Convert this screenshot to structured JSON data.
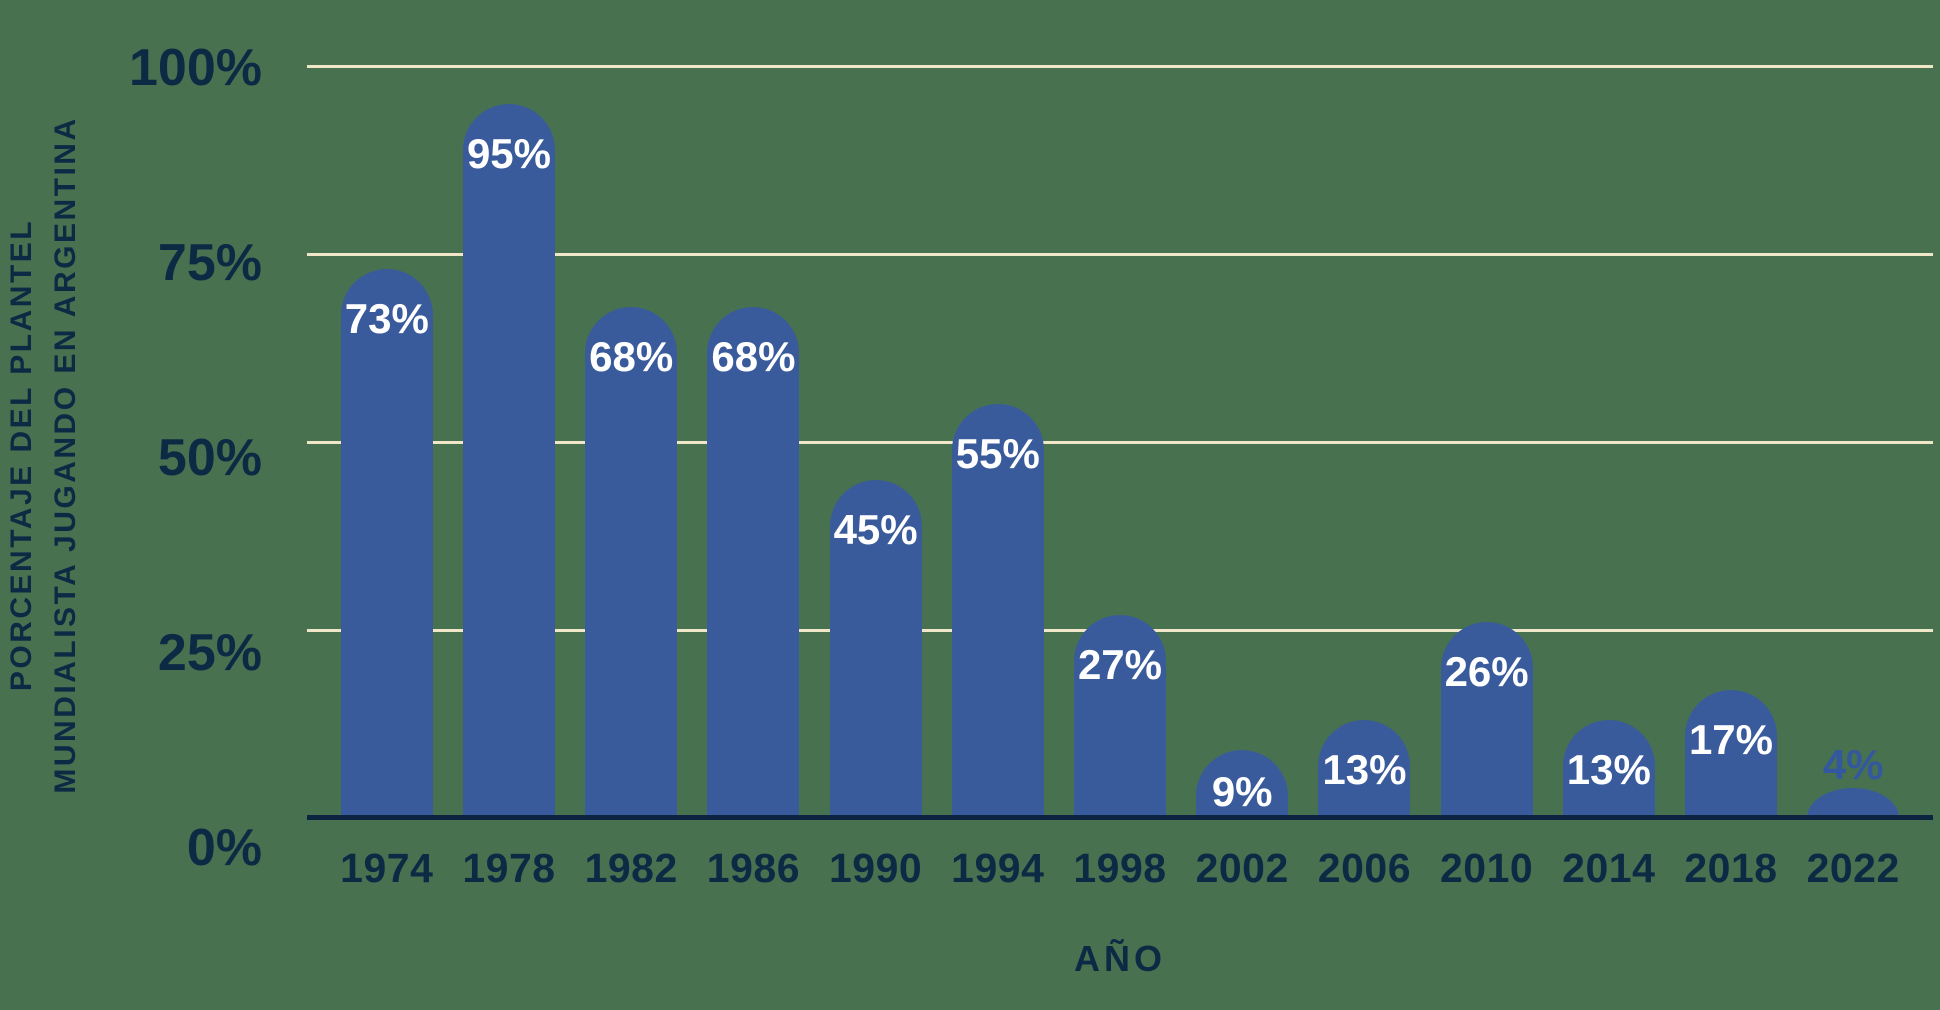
{
  "chart_data": {
    "type": "bar",
    "title": "",
    "xlabel": "AÑO",
    "ylabel_line1": "PORCENTAJE DEL PLANTEL",
    "ylabel_line2": "MUNDIALISTA JUGANDO EN ARGENTINA",
    "categories": [
      "1974",
      "1978",
      "1982",
      "1986",
      "1990",
      "1994",
      "1998",
      "2002",
      "2006",
      "2010",
      "2014",
      "2018",
      "2022"
    ],
    "values": [
      73,
      95,
      68,
      68,
      45,
      55,
      27,
      9,
      13,
      26,
      13,
      17,
      4
    ],
    "bar_labels": [
      "73%",
      "95%",
      "68%",
      "68%",
      "45%",
      "55%",
      "27%",
      "9%",
      "13%",
      "26%",
      "13%",
      "17%",
      "4%"
    ],
    "y_ticks": [
      "100%",
      "75%",
      "50%",
      "25%",
      "0%"
    ],
    "y_tick_values": [
      100,
      75,
      50,
      25,
      0
    ],
    "ylim": [
      0,
      100
    ],
    "grid": "horizontal",
    "legend": "none",
    "colors": {
      "background": "#487150",
      "bar_fill": "#3a5b9b",
      "text_navy": "#0d2a45",
      "axis_line": "#0d2440",
      "gridline_cream": "#f0e6c8",
      "label_inside": "#ffffff",
      "label_above": "#33589f"
    }
  }
}
